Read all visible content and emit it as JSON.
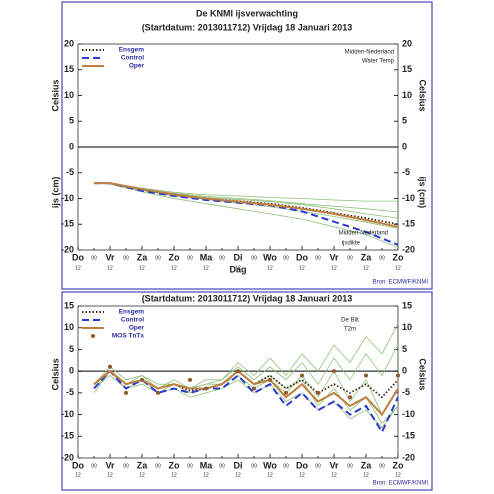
{
  "chart_data": [
    {
      "type": "line",
      "title": "De KNMI ijsverwachting",
      "subtitle": "(Startdatum: 2013011712)   Vrijdag   18 Januari   2013",
      "xlabel": "Dag",
      "ylabels": [
        "Celsius",
        "ijs (cm)"
      ],
      "y2labels": [
        "Celsius",
        "ijs (cm)"
      ],
      "annotations": [
        "Midden-Nederland",
        "Water Temp",
        "Midden-Nederland",
        "ijsdikte"
      ],
      "source": "Bron: ECMWF/KNMI",
      "xlim": [
        0,
        10
      ],
      "xticks": [
        {
          "value": 0,
          "label": "Do"
        },
        {
          "value": 1,
          "label": "Vr"
        },
        {
          "value": 2,
          "label": "Za"
        },
        {
          "value": 3,
          "label": "Zo"
        },
        {
          "value": 4,
          "label": "Ma"
        },
        {
          "value": 5,
          "label": "Di"
        },
        {
          "value": 6,
          "label": "Wo"
        },
        {
          "value": 7,
          "label": "Do"
        },
        {
          "value": 8,
          "label": "Vr"
        },
        {
          "value": 9,
          "label": "Za"
        },
        {
          "value": 10,
          "label": "Zo"
        }
      ],
      "xminor": [
        {
          "value": 0.5,
          "label": "00"
        },
        {
          "value": 1.5,
          "label": "00"
        },
        {
          "value": 2.5,
          "label": "00"
        },
        {
          "value": 3.5,
          "label": "00"
        },
        {
          "value": 4.5,
          "label": "00"
        },
        {
          "value": 5.5,
          "label": "00"
        },
        {
          "value": 6.5,
          "label": "00"
        },
        {
          "value": 7.5,
          "label": "00"
        },
        {
          "value": 8.5,
          "label": "00"
        },
        {
          "value": 9.5,
          "label": "00"
        }
      ],
      "xsub": [
        {
          "value": 0,
          "label": "12"
        },
        {
          "value": 1,
          "label": "12"
        },
        {
          "value": 2,
          "label": "12"
        },
        {
          "value": 3,
          "label": "12"
        },
        {
          "value": 4,
          "label": "12"
        },
        {
          "value": 5,
          "label": "12"
        },
        {
          "value": 6,
          "label": "12"
        },
        {
          "value": 7,
          "label": "12"
        },
        {
          "value": 8,
          "label": "12"
        },
        {
          "value": 9,
          "label": "12"
        },
        {
          "value": 10,
          "label": "12"
        }
      ],
      "ylim": [
        -20,
        20
      ],
      "yticks": [
        -20,
        -15,
        -10,
        -5,
        0,
        5,
        10,
        15,
        20
      ],
      "y2lim": [
        -20,
        20
      ],
      "y2ticks": [
        -20,
        -15,
        -10,
        -5,
        0,
        5,
        10,
        15,
        20
      ],
      "legend": "upper left",
      "x": [
        0.5,
        1,
        2,
        3,
        4,
        5,
        6,
        7,
        8,
        9,
        10
      ],
      "member_color": "#8fc07a",
      "members": [
        [
          -7,
          -7,
          -8,
          -8.8,
          -9.3,
          -9.5,
          -9.8,
          -10,
          -10.3,
          -10.5,
          -10.5
        ],
        [
          -7,
          -7.1,
          -8.2,
          -9,
          -9.6,
          -10,
          -10.4,
          -11,
          -11.5,
          -12,
          -12.6
        ],
        [
          -7,
          -7.1,
          -8.4,
          -9.5,
          -10.2,
          -10.9,
          -11.6,
          -12.5,
          -13.5,
          -14.6,
          -15.8
        ],
        [
          -7,
          -7.2,
          -8.7,
          -10,
          -11,
          -12,
          -13,
          -14,
          -15.5,
          -17,
          -19.5
        ],
        [
          -7,
          -7,
          -8.1,
          -9.1,
          -9.8,
          -10.2,
          -10.6,
          -11.2,
          -12,
          -13,
          -13.8
        ]
      ],
      "series": [
        {
          "name": "Ensgem",
          "color": "#3a2a10",
          "dash": "dotted",
          "values": [
            -7,
            -7,
            -8.3,
            -9.3,
            -10,
            -10.5,
            -11,
            -11.8,
            -12.8,
            -13.8,
            -15
          ]
        },
        {
          "name": "Control",
          "color": "#2a3ad0",
          "dash": "dashed",
          "values": [
            -7,
            -7,
            -8.5,
            -9.5,
            -10.3,
            -10.8,
            -11.3,
            -12.5,
            -14.5,
            -16.5,
            -19
          ]
        },
        {
          "name": "Oper",
          "color": "#c08040",
          "dash": "solid",
          "values": [
            -7,
            -7,
            -8.2,
            -9.2,
            -10,
            -10.6,
            -11.2,
            -12,
            -13,
            -14.2,
            -15.5
          ]
        }
      ]
    },
    {
      "type": "line",
      "subtitle": "(Startdatum: 2013011712)   Vrijdag   18 Januari   2013",
      "ylabels": [
        "Celsius"
      ],
      "y2labels": [
        "Celsius"
      ],
      "annotations": [
        "De Bilt",
        "T2m"
      ],
      "source": "Bron: ECMWF/KNMI",
      "xlim": [
        0,
        10
      ],
      "xticks": [
        {
          "value": 0,
          "label": "Do"
        },
        {
          "value": 1,
          "label": "Vr"
        },
        {
          "value": 2,
          "label": "Za"
        },
        {
          "value": 3,
          "label": "Zo"
        },
        {
          "value": 4,
          "label": "Ma"
        },
        {
          "value": 5,
          "label": "Di"
        },
        {
          "value": 6,
          "label": "Wo"
        },
        {
          "value": 7,
          "label": "Do"
        },
        {
          "value": 8,
          "label": "Vr"
        },
        {
          "value": 9,
          "label": "Za"
        },
        {
          "value": 10,
          "label": "Zo"
        }
      ],
      "xminor": [
        {
          "value": 0.5,
          "label": "00"
        },
        {
          "value": 1.5,
          "label": "00"
        },
        {
          "value": 2.5,
          "label": "00"
        },
        {
          "value": 3.5,
          "label": "00"
        },
        {
          "value": 4.5,
          "label": "00"
        },
        {
          "value": 5.5,
          "label": "00"
        },
        {
          "value": 6.5,
          "label": "00"
        },
        {
          "value": 7.5,
          "label": "00"
        },
        {
          "value": 8.5,
          "label": "00"
        },
        {
          "value": 9.5,
          "label": "00"
        }
      ],
      "xsub": [
        {
          "value": 0,
          "label": "12"
        },
        {
          "value": 1,
          "label": "12"
        },
        {
          "value": 2,
          "label": "12"
        },
        {
          "value": 3,
          "label": "12"
        },
        {
          "value": 4,
          "label": "12"
        },
        {
          "value": 5,
          "label": "12"
        },
        {
          "value": 6,
          "label": "12"
        },
        {
          "value": 7,
          "label": "12"
        },
        {
          "value": 8,
          "label": "12"
        },
        {
          "value": 9,
          "label": "12"
        },
        {
          "value": 10,
          "label": "12"
        }
      ],
      "ylim": [
        -20,
        15
      ],
      "yticks": [
        -20,
        -15,
        -10,
        -5,
        0,
        5,
        10,
        15
      ],
      "y2lim": [
        -20,
        15
      ],
      "y2ticks": [
        -20,
        -15,
        -10,
        -5,
        0,
        5,
        10,
        15
      ],
      "legend": "upper left",
      "x": [
        0.5,
        1,
        1.5,
        2,
        2.5,
        3,
        3.5,
        4,
        4.5,
        5,
        5.5,
        6,
        6.5,
        7,
        7.5,
        8,
        8.5,
        9,
        9.5,
        10
      ],
      "member_color": "#8fc07a",
      "members": [
        [
          -4,
          0,
          -3,
          -1,
          -4,
          -2,
          -4,
          -3,
          -2,
          2,
          -1,
          3,
          -1,
          4,
          0,
          6,
          2,
          8,
          4,
          11
        ],
        [
          -3,
          1,
          -2,
          -1,
          -3,
          -3,
          -4,
          -2,
          -2,
          1,
          -2,
          1,
          -2,
          2,
          -3,
          3,
          -2,
          4,
          -1,
          6
        ],
        [
          -4,
          -1,
          -4,
          -3,
          -5,
          -4,
          -6,
          -5,
          -4,
          -2,
          -5,
          -3,
          -7,
          -5,
          -9,
          -7,
          -11,
          -9,
          -13,
          -8
        ],
        [
          -5,
          0,
          -4,
          -2,
          -5,
          -3,
          -5,
          -4,
          -3,
          -1,
          -4,
          -2,
          -5,
          -1,
          -6,
          0,
          -7,
          -2,
          -10,
          -4
        ],
        [
          -3,
          0,
          -3,
          -2,
          -4,
          -3,
          -4,
          -3,
          -3,
          0,
          -3,
          -1,
          -4,
          -2,
          -8,
          -4,
          -9,
          -6,
          -12,
          -8
        ]
      ],
      "series": [
        {
          "name": "Ensgem",
          "color": "#3a2a10",
          "dash": "dotted",
          "values": [
            -3,
            0,
            -3,
            -2,
            -4,
            -3,
            -4.5,
            -4,
            -3,
            0,
            -3,
            -1,
            -4,
            -2,
            -5,
            -3,
            -5,
            -3,
            -6,
            -2
          ]
        },
        {
          "name": "Control",
          "color": "#2a3ad0",
          "dash": "dashed",
          "values": [
            -4,
            0,
            -4,
            -2,
            -5,
            -4,
            -5,
            -4,
            -4,
            -1,
            -5,
            -3,
            -8,
            -5,
            -9,
            -7,
            -10,
            -8,
            -14,
            -6
          ]
        },
        {
          "name": "Oper",
          "color": "#c08040",
          "dash": "solid",
          "values": [
            -3,
            0,
            -3,
            -2,
            -4,
            -3,
            -4,
            -4,
            -3,
            0,
            -3,
            -2,
            -6,
            -3,
            -7,
            -5,
            -8,
            -6,
            -10,
            -4
          ]
        }
      ],
      "markers": {
        "name": "MOS TnTx",
        "color": "#8a5a30",
        "x": [
          1,
          1.5,
          2,
          2.5,
          3.5,
          4,
          5,
          5.5,
          6,
          6.5,
          7,
          7.5,
          8,
          8.5,
          9,
          10
        ],
        "values": [
          1,
          -5,
          -2,
          -5,
          -2,
          -4,
          0,
          -4,
          -2,
          -5,
          -1,
          -5,
          0,
          -6,
          -1,
          -1
        ]
      }
    }
  ]
}
